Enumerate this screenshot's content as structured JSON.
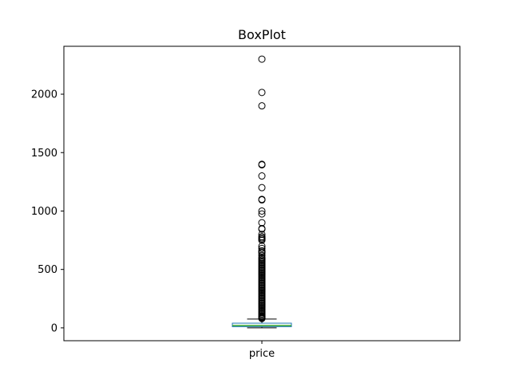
{
  "chart_data": {
    "type": "box",
    "title": "BoxPlot",
    "xlabel": "",
    "ylabel": "",
    "categories": [
      "price"
    ],
    "ylim": [
      -110,
      2410
    ],
    "yticks": [
      0,
      500,
      1000,
      1500,
      2000
    ],
    "ytick_labels": [
      "0",
      "500",
      "1000",
      "1500",
      "2000"
    ],
    "grid": false,
    "legend": "none",
    "boxes": [
      {
        "name": "price",
        "whisker_low": 0,
        "q1": 10,
        "median": 20,
        "q3": 40,
        "whisker_high": 75,
        "outliers": [
          2300,
          2015,
          1900,
          1400,
          1395,
          1300,
          1200,
          1100,
          1095,
          1000,
          975,
          900,
          850,
          845,
          800,
          780,
          770,
          760,
          750,
          700,
          680,
          660,
          650,
          640,
          620,
          600,
          590,
          580,
          570,
          560,
          550,
          540,
          530,
          520,
          510,
          500,
          490,
          480,
          470,
          460,
          450,
          440,
          430,
          420,
          410,
          400,
          390,
          380,
          370,
          360,
          350,
          340,
          330,
          320,
          310,
          300,
          290,
          280,
          270,
          260,
          250,
          240,
          230,
          220,
          210,
          200,
          190,
          180,
          170,
          160,
          150,
          140,
          130,
          120,
          110,
          100,
          95,
          90,
          85,
          80
        ]
      }
    ],
    "colors": {
      "box": "#1f77b4",
      "median": "#2ca02c",
      "whisker": "#000000",
      "cap": "#000000",
      "outlier_edge": "#000000",
      "axes": "#000000"
    }
  }
}
